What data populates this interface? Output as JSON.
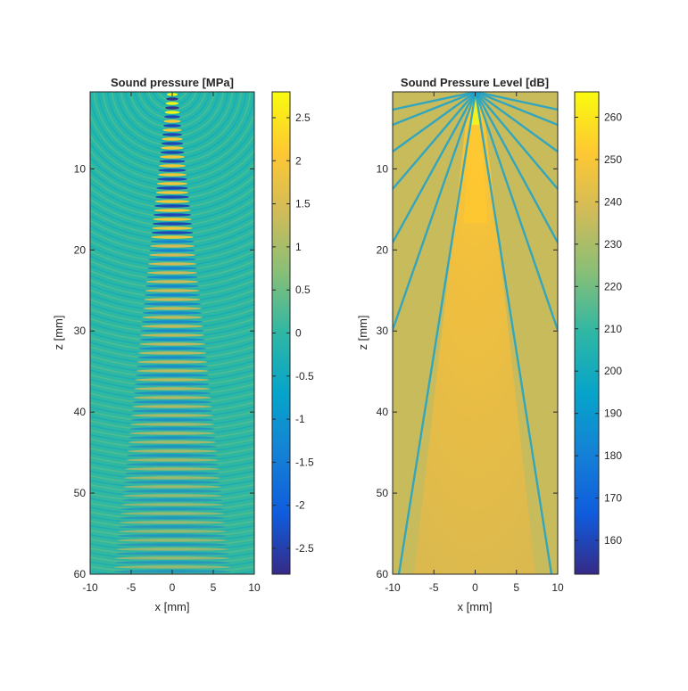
{
  "chart_data": [
    {
      "type": "heatmap",
      "title": "Sound pressure [MPa]",
      "xlabel": "x [mm]",
      "ylabel": "z [mm]",
      "xlim": [
        -10,
        10
      ],
      "ylim": [
        0.5,
        60
      ],
      "y_direction": "reverse",
      "x_ticks": [
        -10,
        -5,
        0,
        5,
        10
      ],
      "y_ticks": [
        10,
        20,
        30,
        40,
        50,
        60
      ],
      "colormap": "parula",
      "colorbar": {
        "range": [
          -2.8,
          2.8
        ],
        "ticks": [
          -2.5,
          -2,
          -1.5,
          -1,
          -0.5,
          0,
          0.5,
          1,
          1.5,
          2,
          2.5
        ],
        "tick_labels": [
          "-2.5",
          "-2",
          "-1.5",
          "-1",
          "-0.5",
          "0",
          "0.5",
          "1",
          "1.5",
          "2",
          "2.5"
        ]
      },
      "description_values": {
        "focus_peak_MPa": 2.8,
        "background_MPa": 0
      }
    },
    {
      "type": "heatmap",
      "title": "Sound Pressure Level [dB]",
      "xlabel": "x [mm]",
      "ylabel": "z [mm]",
      "xlim": [
        -10,
        10
      ],
      "ylim": [
        0.5,
        60
      ],
      "y_direction": "reverse",
      "x_ticks": [
        -10,
        -5,
        0,
        5,
        10
      ],
      "y_ticks": [
        10,
        20,
        30,
        40,
        50,
        60
      ],
      "colormap": "parula",
      "colorbar": {
        "range": [
          152,
          266
        ],
        "ticks": [
          160,
          170,
          180,
          190,
          200,
          210,
          220,
          230,
          240,
          250,
          260
        ],
        "tick_labels": [
          "160",
          "170",
          "180",
          "190",
          "200",
          "210",
          "220",
          "230",
          "240",
          "250",
          "260"
        ]
      },
      "description_values": {
        "main_beam_dB": 248,
        "side_lobe_dB": 234,
        "null_line_dB": 205
      }
    }
  ]
}
